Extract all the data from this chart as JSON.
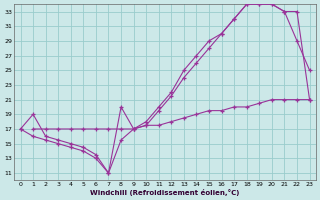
{
  "xlabel": "Windchill (Refroidissement éolien,°C)",
  "bg_color": "#cce8e8",
  "line_color": "#993399",
  "grid_color": "#99cccc",
  "xlim": [
    -0.5,
    23.5
  ],
  "ylim": [
    10,
    34
  ],
  "yticks": [
    11,
    13,
    15,
    17,
    19,
    21,
    23,
    25,
    27,
    29,
    31,
    33
  ],
  "xticks": [
    0,
    1,
    2,
    3,
    4,
    5,
    6,
    7,
    8,
    9,
    10,
    11,
    12,
    13,
    14,
    15,
    16,
    17,
    18,
    19,
    20,
    21,
    22,
    23
  ],
  "line1": {
    "x": [
      0,
      1,
      2,
      3,
      4,
      5,
      6,
      7,
      8,
      9,
      10,
      11,
      12,
      13,
      14,
      15,
      16,
      17,
      18,
      19,
      20,
      21,
      22,
      23
    ],
    "y": [
      17,
      19,
      16,
      15.5,
      15,
      14.5,
      13.5,
      11,
      20,
      17,
      18,
      20,
      22,
      25,
      27,
      29,
      30,
      32,
      34,
      34,
      34,
      33,
      29,
      25
    ]
  },
  "line2": {
    "x": [
      0,
      1,
      2,
      3,
      4,
      5,
      6,
      7,
      8,
      9,
      10,
      11,
      12,
      13,
      14,
      15,
      16,
      17,
      18,
      19,
      20,
      21,
      22,
      23
    ],
    "y": [
      17,
      16,
      15.5,
      15,
      14.5,
      14,
      13,
      11,
      15.5,
      17,
      17.5,
      19.5,
      21.5,
      24,
      26,
      28,
      30,
      32,
      34,
      34,
      34,
      33,
      33,
      21
    ]
  },
  "line3": {
    "x": [
      1,
      2,
      3,
      4,
      5,
      6,
      7,
      8,
      9,
      10,
      11,
      12,
      13,
      14,
      15,
      16,
      17,
      18,
      19,
      20,
      21,
      22,
      23
    ],
    "y": [
      17,
      17,
      17,
      17,
      17,
      17,
      17,
      17,
      17,
      17.5,
      17.5,
      18,
      18.5,
      19,
      19.5,
      19.5,
      20,
      20,
      20.5,
      21,
      21,
      21,
      21
    ]
  }
}
